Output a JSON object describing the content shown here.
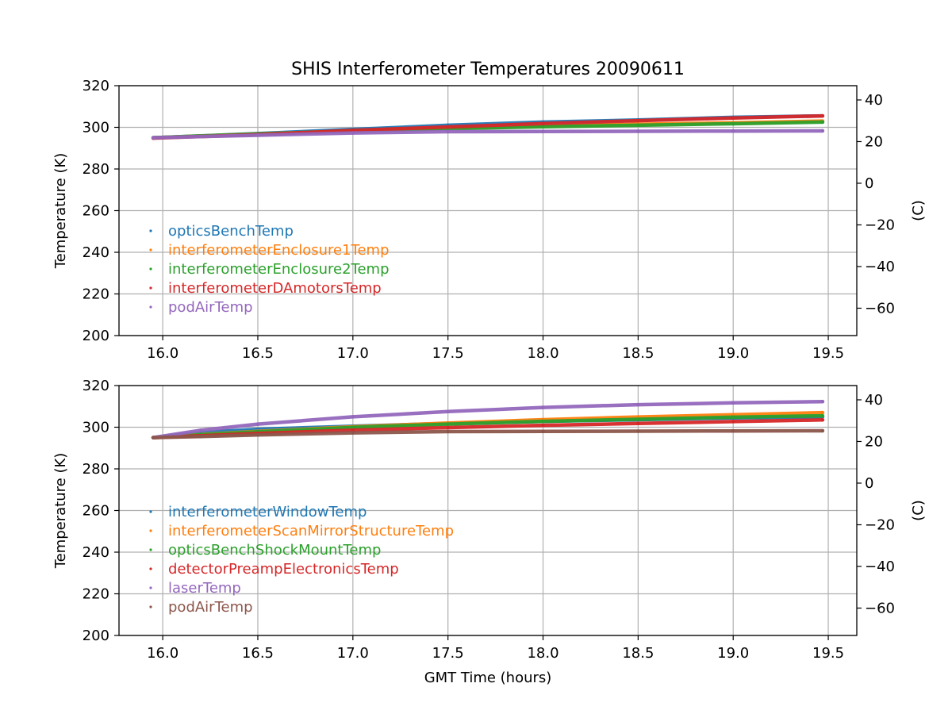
{
  "chart_data": [
    {
      "type": "scatter",
      "title": "SHIS Interferometer Temperatures 20090611",
      "xlabel": "",
      "ylabel": "Temperature (K)",
      "ylabel_right": "(C)",
      "xlim": [
        15.77,
        19.65
      ],
      "ylim": [
        200,
        320
      ],
      "xticks": [
        "16.0",
        "16.5",
        "17.0",
        "17.5",
        "18.0",
        "18.5",
        "19.0",
        "19.5"
      ],
      "yticks": [
        "200",
        "220",
        "240",
        "260",
        "280",
        "300",
        "320"
      ],
      "yticks_right": [
        "−60",
        "−40",
        "−20",
        "0",
        "20",
        "40"
      ],
      "grid": true,
      "legend_position": "lower-left",
      "series": [
        {
          "name": "opticsBenchTemp",
          "color": "#1f77b4",
          "x": [
            15.95,
            16.5,
            17.0,
            17.5,
            18.0,
            18.5,
            19.0,
            19.47
          ],
          "y": [
            295.0,
            297.0,
            299.0,
            301.0,
            302.5,
            303.5,
            304.8,
            305.5
          ]
        },
        {
          "name": "interferometerEnclosure1Temp",
          "color": "#ff7f0e",
          "x": [
            15.95,
            16.5,
            17.0,
            17.5,
            18.0,
            18.5,
            19.0,
            19.47
          ],
          "y": [
            295.0,
            296.8,
            298.3,
            299.5,
            300.5,
            301.5,
            302.2,
            303.0
          ]
        },
        {
          "name": "interferometerEnclosure2Temp",
          "color": "#2ca02c",
          "x": [
            15.95,
            16.5,
            17.0,
            17.5,
            18.0,
            18.5,
            19.0,
            19.47
          ],
          "y": [
            295.0,
            296.8,
            298.2,
            299.3,
            300.3,
            301.0,
            301.7,
            302.5
          ]
        },
        {
          "name": "interferometerDAmotorsTemp",
          "color": "#d62728",
          "x": [
            15.95,
            16.5,
            17.0,
            17.5,
            18.0,
            18.5,
            19.0,
            19.47
          ],
          "y": [
            294.8,
            296.5,
            298.5,
            300.2,
            301.8,
            303.2,
            304.5,
            305.5
          ]
        },
        {
          "name": "podAirTemp",
          "color": "#9467bd",
          "x": [
            15.95,
            16.5,
            17.0,
            17.5,
            18.0,
            18.5,
            19.0,
            19.47
          ],
          "y": [
            295.0,
            296.2,
            297.3,
            297.9,
            298.0,
            298.1,
            298.2,
            298.3
          ]
        }
      ]
    },
    {
      "type": "scatter",
      "title": "",
      "xlabel": "GMT Time (hours)",
      "ylabel": "Temperature (K)",
      "ylabel_right": "(C)",
      "xlim": [
        15.77,
        19.65
      ],
      "ylim": [
        200,
        320
      ],
      "xticks": [
        "16.0",
        "16.5",
        "17.0",
        "17.5",
        "18.0",
        "18.5",
        "19.0",
        "19.5"
      ],
      "yticks": [
        "200",
        "220",
        "240",
        "260",
        "280",
        "300",
        "320"
      ],
      "yticks_right": [
        "−60",
        "−40",
        "−20",
        "0",
        "20",
        "40"
      ],
      "grid": true,
      "legend_position": "lower-left",
      "series": [
        {
          "name": "interferometerWindowTemp",
          "color": "#1f77b4",
          "x": [
            15.95,
            16.2,
            16.5,
            17.0,
            17.5,
            18.0,
            18.5,
            19.0,
            19.47
          ],
          "y": [
            295.0,
            297.5,
            299.0,
            300.5,
            301.8,
            302.8,
            303.6,
            304.5,
            305.0
          ]
        },
        {
          "name": "interferometerScanMirrorStructureTemp",
          "color": "#ff7f0e",
          "x": [
            15.95,
            16.2,
            16.5,
            17.0,
            17.5,
            18.0,
            18.5,
            19.0,
            19.47
          ],
          "y": [
            295.0,
            296.5,
            298.0,
            300.2,
            302.0,
            303.6,
            304.9,
            306.0,
            307.0
          ]
        },
        {
          "name": "opticsBenchShockMountTemp",
          "color": "#2ca02c",
          "x": [
            15.95,
            16.2,
            16.5,
            17.0,
            17.5,
            18.0,
            18.5,
            19.0,
            19.47
          ],
          "y": [
            295.0,
            296.4,
            297.8,
            299.9,
            301.5,
            302.8,
            303.8,
            304.8,
            305.5
          ]
        },
        {
          "name": "detectorPreampElectronicsTemp",
          "color": "#d62728",
          "x": [
            15.95,
            16.2,
            16.5,
            17.0,
            17.5,
            18.0,
            18.5,
            19.0,
            19.47
          ],
          "y": [
            295.0,
            295.9,
            297.0,
            298.6,
            299.8,
            300.9,
            301.8,
            302.7,
            303.5
          ]
        },
        {
          "name": "laserTemp",
          "color": "#9467bd",
          "x": [
            15.95,
            16.2,
            16.5,
            17.0,
            17.5,
            18.0,
            18.5,
            19.0,
            19.47
          ],
          "y": [
            295.0,
            298.5,
            301.5,
            305.0,
            307.5,
            309.5,
            310.8,
            311.7,
            312.3
          ]
        },
        {
          "name": "podAirTemp",
          "color": "#8c564b",
          "x": [
            15.95,
            16.2,
            16.5,
            17.0,
            17.5,
            18.0,
            18.5,
            19.0,
            19.47
          ],
          "y": [
            295.0,
            295.5,
            296.3,
            297.3,
            297.9,
            298.0,
            298.1,
            298.2,
            298.3
          ]
        }
      ]
    }
  ]
}
